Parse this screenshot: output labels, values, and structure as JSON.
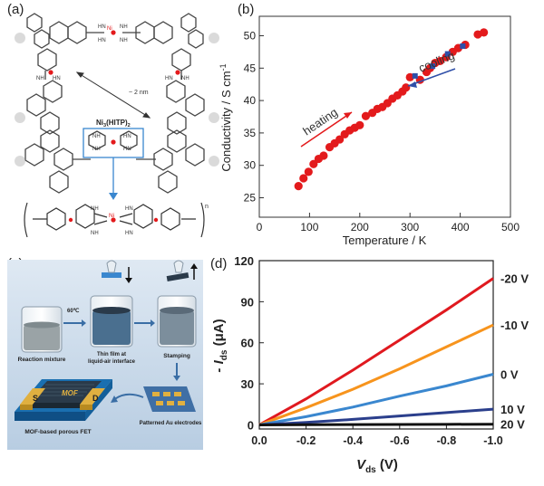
{
  "figure": {
    "labels": {
      "a": "(a)",
      "b": "(b)",
      "c": "(c)",
      "d": "(d)"
    }
  },
  "panel_a": {
    "distance_label": "~ 2 nm",
    "unit_label": "Ni3(HITP)2",
    "unit_label_main": "Ni",
    "unit_label_sub": "3",
    "unit_label_rest": "(HITP)",
    "unit_label_sub2": "2",
    "nh": "NH",
    "hn": "HN",
    "ni": "Ni",
    "n_index": "n"
  },
  "panel_c": {
    "temp": "60℃",
    "captions": {
      "reaction": "Reaction mixture",
      "film": "Thin film at liquid-air interface",
      "film_line1": "Thin film at",
      "film_line2": "liquid-air interface",
      "stamping": "Stamping",
      "patterned": "Patterned Au electrodes",
      "fet": "MOF-based porous FET"
    },
    "device": {
      "s": "S",
      "d": "D",
      "mof": "MOF"
    },
    "colors": {
      "bg": "#c9d9e9",
      "gold": "#e0b040",
      "film": "#2a3a4a"
    }
  },
  "chart_data": [
    {
      "panel": "b",
      "type": "scatter",
      "xlabel": "Temperature / K",
      "ylabel": "Conductivity / S cm",
      "ylabel_sup": "-1",
      "xlim": [
        0,
        500
      ],
      "ylim": [
        22,
        53
      ],
      "xticks": [
        0,
        100,
        200,
        300,
        400,
        500
      ],
      "yticks": [
        25,
        30,
        35,
        40,
        45,
        50
      ],
      "annotations": {
        "heating": "heating",
        "cooling": "cooling"
      },
      "series": [
        {
          "name": "heating",
          "color": "#e31a1c",
          "marker": "circle",
          "x": [
            78,
            88,
            98,
            108,
            118,
            128,
            140,
            150,
            160,
            170,
            180,
            190,
            200,
            212,
            225,
            235,
            245,
            255,
            265,
            275,
            285,
            292,
            300,
            320,
            333,
            340,
            350,
            360,
            372,
            385,
            396,
            410,
            435,
            447
          ],
          "y": [
            26.8,
            28.0,
            29.0,
            30.2,
            31.0,
            31.5,
            32.8,
            33.4,
            34.0,
            34.8,
            35.4,
            35.8,
            36.2,
            37.6,
            38.1,
            38.7,
            39.0,
            39.6,
            40.3,
            40.8,
            41.4,
            42.0,
            43.6,
            43.2,
            44.4,
            45.0,
            45.8,
            46.1,
            46.7,
            47.5,
            48.1,
            48.6,
            50.2,
            50.5
          ]
        },
        {
          "name": "cooling",
          "color": "#2f4fa8",
          "marker": "square",
          "x": [
            310,
            345,
            375,
            405
          ],
          "y": [
            43.8,
            45.3,
            47.2,
            48.4
          ]
        }
      ]
    },
    {
      "panel": "d",
      "type": "line",
      "xlabel_main": "V",
      "xlabel_sub": "ds",
      "xlabel_unit": " (V)",
      "ylabel_main": "- I",
      "ylabel_sub": "ds",
      "ylabel_unit": " (μA)",
      "xlim": [
        0,
        -1.0
      ],
      "ylim": [
        -3,
        120
      ],
      "xticks": [
        0,
        -0.2,
        -0.4,
        -0.6,
        -0.8,
        -1.0
      ],
      "xticklabels": [
        "0.0",
        "-0.2",
        "-0.4",
        "-0.6",
        "-0.8",
        "-1.0"
      ],
      "yticks": [
        0,
        30,
        60,
        90,
        120
      ],
      "x": [
        0,
        -0.2,
        -0.4,
        -0.6,
        -0.8,
        -1.0
      ],
      "series": [
        {
          "name": "-20 V",
          "color": "#e0191f",
          "values": [
            0,
            19,
            40,
            62,
            84,
            107
          ]
        },
        {
          "name": "-10 V",
          "color": "#f7941d",
          "values": [
            0,
            12.5,
            26,
            41,
            57,
            73
          ]
        },
        {
          "name": "0 V",
          "color": "#3a87cf",
          "values": [
            0,
            6,
            13,
            21,
            28.5,
            37
          ]
        },
        {
          "name": "10 V",
          "color": "#2b3f8c",
          "values": [
            0,
            1.8,
            4,
            6.5,
            9,
            11.5
          ]
        },
        {
          "name": "20 V",
          "color": "#111111",
          "values": [
            0,
            0.1,
            0.2,
            0.3,
            0.4,
            0.5
          ]
        }
      ]
    }
  ]
}
